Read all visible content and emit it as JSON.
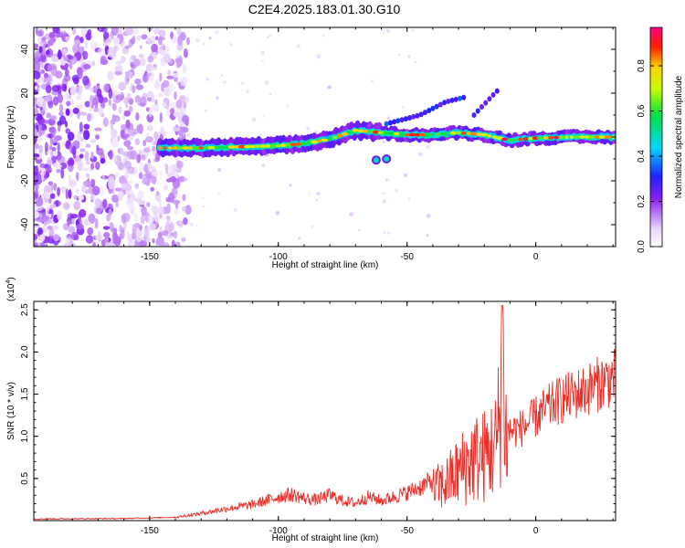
{
  "title": "C2E4.2025.183.01.30.G10",
  "chart_data": [
    {
      "type": "heatmap",
      "xlabel": "Height of straight line (km)",
      "ylabel": "Frequency (Hz)",
      "xlim": [
        -195,
        31
      ],
      "ylim": [
        -50,
        50
      ],
      "xticks": [
        -150,
        -100,
        -50,
        0
      ],
      "yticks": [
        -40,
        -20,
        0,
        20,
        40
      ],
      "colorbar": {
        "label": "Normalized spectral amplitude",
        "range": [
          0,
          0.97
        ],
        "ticks": [
          "0.0",
          "0.2",
          "0.4",
          "0.6",
          "0.8"
        ]
      },
      "ridge": [
        {
          "x": -145,
          "f": -5
        },
        {
          "x": -130,
          "f": -5
        },
        {
          "x": -115,
          "f": -4.5
        },
        {
          "x": -100,
          "f": -4
        },
        {
          "x": -90,
          "f": -3
        },
        {
          "x": -80,
          "f": -1
        },
        {
          "x": -70,
          "f": 3
        },
        {
          "x": -60,
          "f": 2
        },
        {
          "x": -50,
          "f": 1
        },
        {
          "x": -40,
          "f": 1
        },
        {
          "x": -30,
          "f": 2
        },
        {
          "x": -20,
          "f": 1
        },
        {
          "x": -10,
          "f": -1.5
        },
        {
          "x": 0,
          "f": -0.5
        },
        {
          "x": 15,
          "f": 0
        },
        {
          "x": 30,
          "f": 0
        }
      ],
      "secondary_ridge": [
        {
          "x": -58,
          "f": 6
        },
        {
          "x": -45,
          "f": 10
        },
        {
          "x": -35,
          "f": 16
        },
        {
          "x": -28,
          "f": 18
        }
      ],
      "tertiary_ridge": [
        {
          "x": -24,
          "f": 10
        },
        {
          "x": -20,
          "f": 15
        },
        {
          "x": -15,
          "f": 21
        }
      ]
    },
    {
      "type": "line",
      "xlabel": "Height of straight line (km)",
      "ylabel": "SNR (10 * v/v)",
      "multiplier": "(x10",
      "multiplier_exp": "4",
      "multiplier_close": ")",
      "xlim": [
        -195,
        31
      ],
      "ylim": [
        0,
        2.6
      ],
      "xticks": [
        -150,
        -100,
        -50,
        0
      ],
      "yticks": [
        "0.5",
        "1.0",
        "1.5",
        "2.0",
        "2.5"
      ],
      "color": "#e8302a",
      "series": [
        {
          "values": [
            {
              "x": -195,
              "y": 0.02
            },
            {
              "x": -160,
              "y": 0.025
            },
            {
              "x": -140,
              "y": 0.04
            },
            {
              "x": -130,
              "y": 0.09
            },
            {
              "x": -120,
              "y": 0.15
            },
            {
              "x": -110,
              "y": 0.2
            },
            {
              "x": -100,
              "y": 0.3
            },
            {
              "x": -95,
              "y": 0.33
            },
            {
              "x": -90,
              "y": 0.28
            },
            {
              "x": -85,
              "y": 0.26
            },
            {
              "x": -80,
              "y": 0.32
            },
            {
              "x": -75,
              "y": 0.25
            },
            {
              "x": -70,
              "y": 0.22
            },
            {
              "x": -65,
              "y": 0.3
            },
            {
              "x": -60,
              "y": 0.25
            },
            {
              "x": -55,
              "y": 0.3
            },
            {
              "x": -50,
              "y": 0.35
            },
            {
              "x": -45,
              "y": 0.42
            },
            {
              "x": -40,
              "y": 0.5
            },
            {
              "x": -35,
              "y": 0.6
            },
            {
              "x": -30,
              "y": 0.8
            },
            {
              "x": -25,
              "y": 1.0
            },
            {
              "x": -20,
              "y": 1.05
            },
            {
              "x": -15,
              "y": 1.25
            },
            {
              "x": -13,
              "y": 2.55
            },
            {
              "x": -11,
              "y": 1.1
            },
            {
              "x": -5,
              "y": 1.15
            },
            {
              "x": 0,
              "y": 1.28
            },
            {
              "x": 5,
              "y": 1.4
            },
            {
              "x": 10,
              "y": 1.5
            },
            {
              "x": 15,
              "y": 1.55
            },
            {
              "x": 20,
              "y": 1.62
            },
            {
              "x": 25,
              "y": 1.7
            },
            {
              "x": 31,
              "y": 1.78
            }
          ]
        }
      ]
    }
  ]
}
